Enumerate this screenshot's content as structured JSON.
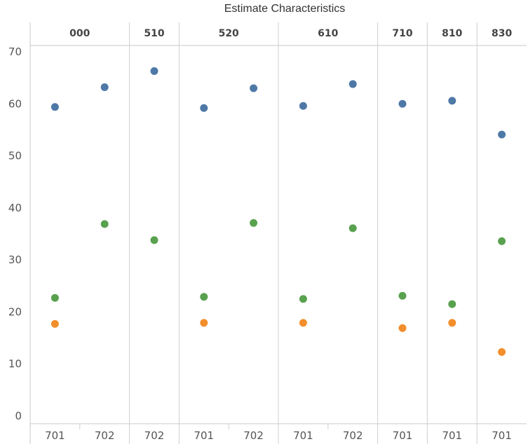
{
  "chart_data": {
    "type": "scatter",
    "title": "Estimate Characteristics",
    "xlabel": "",
    "ylabel": "",
    "ylim": [
      0,
      70
    ],
    "yticks": [
      0,
      10,
      20,
      30,
      40,
      50,
      60,
      70
    ],
    "groups": [
      {
        "label": "000",
        "columns": [
          "701",
          "702"
        ]
      },
      {
        "label": "510",
        "columns": [
          "702"
        ]
      },
      {
        "label": "520",
        "columns": [
          "701",
          "702"
        ]
      },
      {
        "label": "610",
        "columns": [
          "701",
          "702"
        ]
      },
      {
        "label": "710",
        "columns": [
          "701"
        ]
      },
      {
        "label": "810",
        "columns": [
          "701"
        ]
      },
      {
        "label": "830",
        "columns": [
          "701"
        ]
      }
    ],
    "series": [
      {
        "color": "#4e79a7",
        "values": [
          59.4,
          63.2,
          66.3,
          59.2,
          63.0,
          59.6,
          63.8,
          60.0,
          60.6,
          54.1
        ]
      },
      {
        "color": "#59a14f",
        "values": [
          22.7,
          36.9,
          33.8,
          22.9,
          37.1,
          22.5,
          36.1,
          23.1,
          21.5,
          33.6
        ]
      },
      {
        "color": "#f28e2b",
        "values": [
          17.7,
          null,
          null,
          17.9,
          null,
          17.9,
          null,
          16.9,
          17.9,
          12.3
        ]
      }
    ]
  }
}
